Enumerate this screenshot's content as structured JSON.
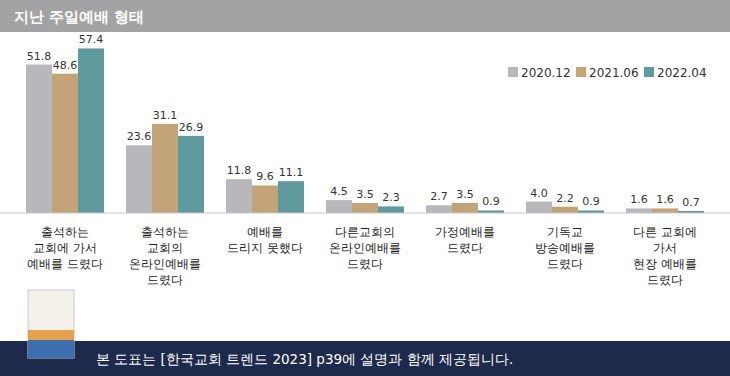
{
  "chart_data": {
    "type": "bar",
    "title": "지난 주일예배 형태",
    "categories": [
      "출석하는\n교회에 가서\n예배를 드렸다",
      "출석하는\n교회의\n온라인예배를\n드렸다",
      "예배를\n드리지 못했다",
      "다른교회의\n온라인예배를\n드렸다",
      "가정예배를\n드렸다",
      "기독교\n방송예배를\n드렸다",
      "다른 교회에\n가서\n현장 예배를\n드렸다"
    ],
    "series": [
      {
        "name": "2020.12",
        "color": "#b8b8bc",
        "values": [
          51.8,
          23.6,
          11.8,
          4.5,
          2.7,
          4.0,
          1.6
        ]
      },
      {
        "name": "2021.06",
        "color": "#c3a476",
        "values": [
          48.6,
          31.1,
          9.6,
          3.5,
          3.5,
          2.2,
          1.6
        ]
      },
      {
        "name": "2022.04",
        "color": "#5f9a9f",
        "values": [
          57.4,
          26.9,
          11.1,
          2.3,
          0.9,
          0.9,
          0.7
        ]
      }
    ],
    "value_labels": [
      [
        "51.8",
        "23.6",
        "11.8",
        "4.5",
        "2.7",
        "4.0",
        "1.6"
      ],
      [
        "48.6",
        "31.1",
        "9.6",
        "3.5",
        "3.5",
        "2.2",
        "1.6"
      ],
      [
        "57.4",
        "26.9",
        "11.1",
        "2.3",
        "0.9",
        "0.9",
        "0.7"
      ]
    ],
    "ylim": [
      0,
      60
    ],
    "data_labels": true,
    "tick_labels": "x",
    "grid": false,
    "legend": "top-right",
    "annotations": [
      "본 도표는 [한국교회 트렌드 2023] p39에 설명과 함께 제공됩니다."
    ]
  }
}
